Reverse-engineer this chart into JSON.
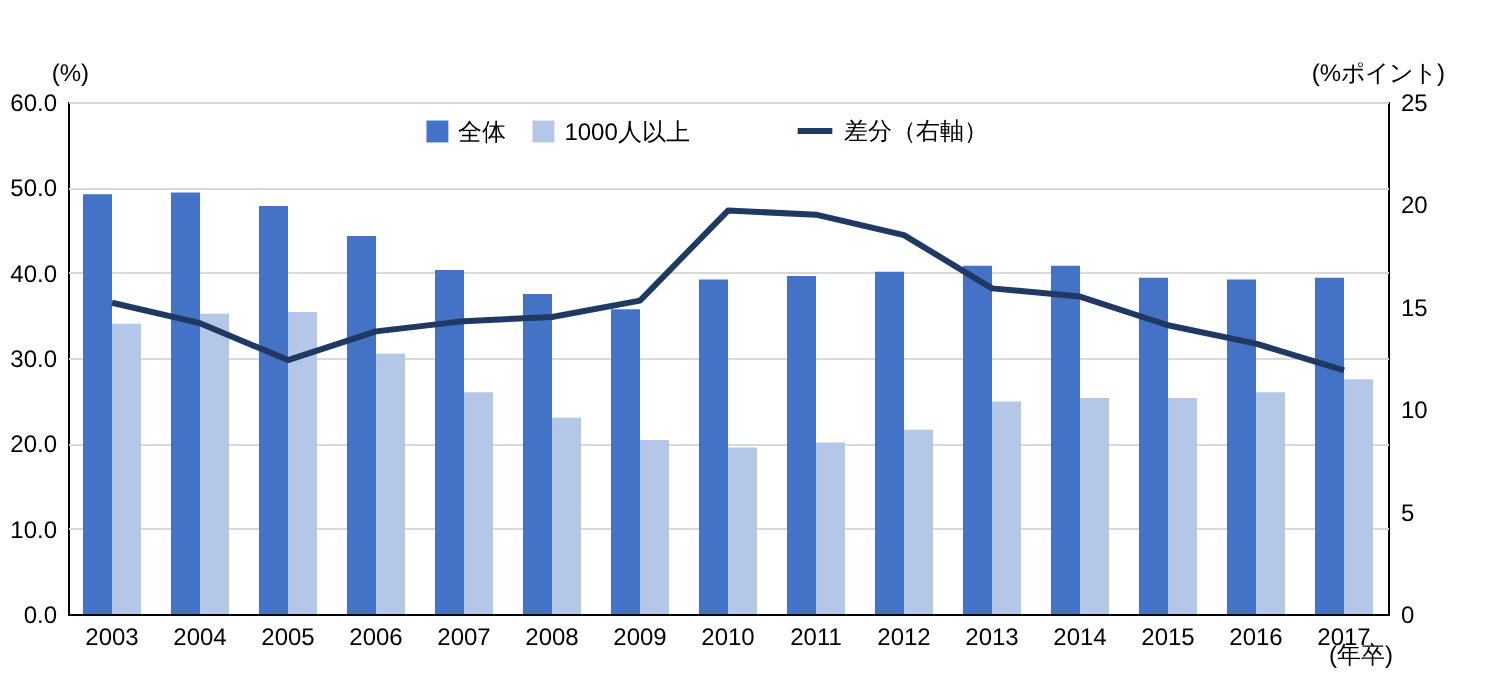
{
  "chart_data": {
    "type": "bar",
    "ylabel": "(%)",
    "y2label": "(%ポイント)",
    "xlabel": "(年卒)",
    "categories": [
      "2003",
      "2004",
      "2005",
      "2006",
      "2007",
      "2008",
      "2009",
      "2010",
      "2011",
      "2012",
      "2013",
      "2014",
      "2015",
      "2016",
      "2017"
    ],
    "series": [
      {
        "name": "全体",
        "color": "#4472c4",
        "values": [
          49.2,
          49.4,
          47.8,
          44.3,
          40.3,
          37.5,
          35.7,
          39.2,
          39.6,
          40.1,
          40.8,
          40.8,
          39.4,
          39.2,
          39.4
        ]
      },
      {
        "name": "1000人以上",
        "color": "#b4c7e7",
        "values": [
          34.0,
          35.2,
          35.4,
          30.5,
          26.0,
          23.0,
          20.4,
          19.5,
          20.1,
          21.6,
          24.9,
          25.3,
          25.3,
          26.0,
          27.5
        ]
      },
      {
        "name": "差分（右軸）",
        "type": "line",
        "axis": "y2",
        "color": "#203864",
        "values": [
          15.2,
          14.2,
          12.4,
          13.8,
          14.3,
          14.5,
          15.3,
          19.7,
          19.5,
          18.5,
          15.9,
          15.5,
          14.1,
          13.2,
          11.9
        ]
      }
    ],
    "ylim": [
      0,
      60
    ],
    "yticks": [
      {
        "value": 0,
        "label": "0.0"
      },
      {
        "value": 10,
        "label": "10.0"
      },
      {
        "value": 20,
        "label": "20.0"
      },
      {
        "value": 30,
        "label": "30.0"
      },
      {
        "value": 40,
        "label": "40.0"
      },
      {
        "value": 50,
        "label": "50.0"
      },
      {
        "value": 60,
        "label": "60.0"
      }
    ],
    "y2lim": [
      0,
      25
    ],
    "y2ticks": [
      0,
      5,
      10,
      15,
      20,
      25
    ],
    "grid": "y",
    "legend": "top",
    "marker": "none",
    "line_style": "solid"
  }
}
